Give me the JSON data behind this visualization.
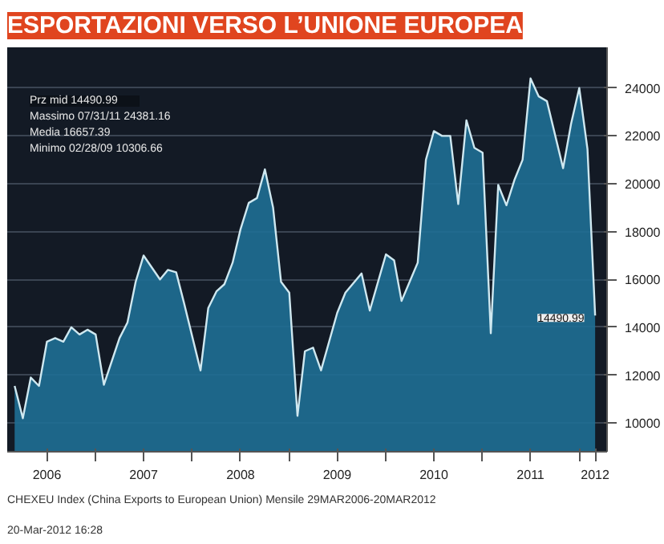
{
  "chart_data": {
    "type": "area",
    "title": "ESPORTAZIONI VERSO L’UNIONE EUROPEA",
    "x": [
      "2006-03",
      "2006-04",
      "2006-05",
      "2006-06",
      "2006-07",
      "2006-08",
      "2006-09",
      "2006-10",
      "2006-11",
      "2006-12",
      "2007-01",
      "2007-02",
      "2007-04",
      "2007-05",
      "2007-06",
      "2007-07",
      "2007-09",
      "2007-10",
      "2007-11",
      "2007-12",
      "2008-02",
      "2008-03",
      "2008-04",
      "2008-05",
      "2008-06",
      "2008-07",
      "2008-08",
      "2008-09",
      "2008-10",
      "2008-11",
      "2008-12",
      "2009-01",
      "2009-02",
      "2009-03",
      "2009-04",
      "2009-05",
      "2009-07",
      "2009-08",
      "2009-10",
      "2009-11",
      "2010-01",
      "2010-02",
      "2010-03",
      "2010-05",
      "2010-06",
      "2010-07",
      "2010-08",
      "2010-09",
      "2010-10",
      "2010-11",
      "2010-12",
      "2011-01",
      "2011-02",
      "2011-03",
      "2011-04",
      "2011-05",
      "2011-06",
      "2011-07",
      "2011-08",
      "2011-09",
      "2011-11",
      "2011-12",
      "2012-01",
      "2012-02",
      "2012-03"
    ],
    "series": [
      {
        "color": "#1f6f95",
        "values": [
          11550,
          10200,
          11900,
          11550,
          13400,
          13550,
          13400,
          14000,
          13700,
          13900,
          13700,
          11600,
          13550,
          14200,
          15900,
          17000,
          16000,
          16400,
          16300,
          15000,
          12200,
          14800,
          15500,
          15800,
          16700,
          18100,
          19200,
          19400,
          20600,
          19000,
          15900,
          15450,
          10300,
          13000,
          13150,
          12200,
          14600,
          15450,
          16250,
          14700,
          17050,
          16800,
          15100,
          16700,
          21000,
          22200,
          22000,
          22000,
          19150,
          22650,
          21500,
          21300,
          13750,
          19950,
          19100,
          20150,
          21000,
          24400,
          23650,
          23450,
          20650,
          22500,
          24000,
          21450,
          14490
        ]
      }
    ],
    "xlim": [
      "2006-02",
      "2012-04-15"
    ],
    "xticks": [
      {
        "value": "2006-07",
        "label": "2006"
      },
      {
        "value": "2007-01",
        "label": null
      },
      {
        "value": "2007-07",
        "label": "2007"
      },
      {
        "value": "2008-01",
        "label": null
      },
      {
        "value": "2008-07",
        "label": "2008"
      },
      {
        "value": "2009-01",
        "label": null
      },
      {
        "value": "2009-07",
        "label": "2009"
      },
      {
        "value": "2010-01",
        "label": null
      },
      {
        "value": "2010-07",
        "label": "2010"
      },
      {
        "value": "2011-01",
        "label": null
      },
      {
        "value": "2011-07",
        "label": "2011"
      },
      {
        "value": "2012-01",
        "label": null
      },
      {
        "value": "2012-03",
        "label": "2012"
      }
    ],
    "ylim": [
      8800,
      25700
    ],
    "yticks": [
      10000,
      12000,
      14000,
      16000,
      18000,
      20000,
      22000,
      24000
    ],
    "grid": "y",
    "annotations": [
      "Prz mid        14490.99",
      "Massimo 07/31/11  24381.16",
      "Media          16657.39",
      "Minimo 02/28/09   10306.66",
      {
        "text": "14490.99",
        "x": "2012-03",
        "y": 14490
      },
      "CHEXEU Index (China Exports to European Union)  Mensile 29MAR2006-20MAR2012",
      "20-Mar-2012 16:28"
    ]
  }
}
